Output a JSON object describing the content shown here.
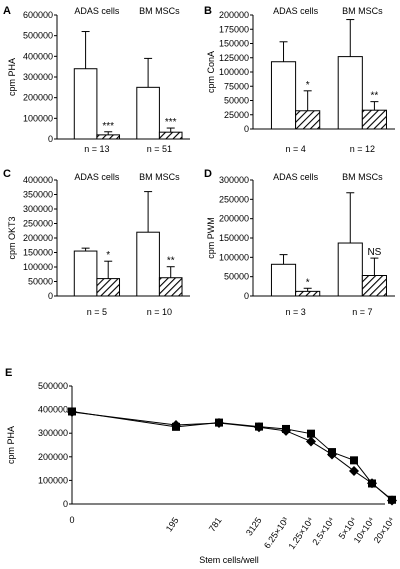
{
  "chart_data": [
    {
      "panel": "A",
      "type": "bar",
      "ylabel": "cpm PHA",
      "ylim": [
        0,
        600000
      ],
      "yticks": [
        "0",
        "100000",
        "200000",
        "300000",
        "400000",
        "500000",
        "600000"
      ],
      "groups": [
        {
          "label": "ADAS cells",
          "n_label": "n = 13",
          "bars": [
            {
              "pattern": "open",
              "value": 340000,
              "err": 180000
            },
            {
              "pattern": "hatched",
              "value": 20000,
              "err": 15000,
              "sig": "***"
            }
          ]
        },
        {
          "label": "BM MSCs",
          "n_label": "n = 51",
          "bars": [
            {
              "pattern": "open",
              "value": 250000,
              "err": 140000
            },
            {
              "pattern": "hatched",
              "value": 33000,
              "err": 20000,
              "sig": "***"
            }
          ]
        }
      ]
    },
    {
      "panel": "B",
      "type": "bar",
      "ylabel": "cpm ConA",
      "ylim": [
        0,
        200000
      ],
      "yticks": [
        "0",
        "25000",
        "50000",
        "75000",
        "100000",
        "125000",
        "150000",
        "175000",
        "200000"
      ],
      "groups": [
        {
          "label": "ADAS cells",
          "n_label": "n = 4",
          "bars": [
            {
              "pattern": "open",
              "value": 118000,
              "err": 35000
            },
            {
              "pattern": "hatched",
              "value": 32000,
              "err": 35000,
              "sig": "*"
            }
          ]
        },
        {
          "label": "BM MSCs",
          "n_label": "n = 12",
          "bars": [
            {
              "pattern": "open",
              "value": 127000,
              "err": 65000
            },
            {
              "pattern": "hatched",
              "value": 33000,
              "err": 15000,
              "sig": "**"
            }
          ]
        }
      ]
    },
    {
      "panel": "C",
      "type": "bar",
      "ylabel": "cpm OKT3",
      "ylim": [
        0,
        400000
      ],
      "yticks": [
        "0",
        "50000",
        "100000",
        "150000",
        "200000",
        "250000",
        "300000",
        "350000",
        "400000"
      ],
      "groups": [
        {
          "label": "ADAS cells",
          "n_label": "n = 5",
          "bars": [
            {
              "pattern": "open",
              "value": 155000,
              "err": 10000
            },
            {
              "pattern": "hatched",
              "value": 60000,
              "err": 60000,
              "sig": "*"
            }
          ]
        },
        {
          "label": "BM MSCs",
          "n_label": "n = 10",
          "bars": [
            {
              "pattern": "open",
              "value": 220000,
              "err": 140000
            },
            {
              "pattern": "hatched",
              "value": 63000,
              "err": 38000,
              "sig": "**"
            }
          ]
        }
      ]
    },
    {
      "panel": "D",
      "type": "bar",
      "ylabel": "cpm PWM",
      "ylim": [
        0,
        300000
      ],
      "yticks": [
        "0",
        "50000",
        "100000",
        "150000",
        "200000",
        "250000",
        "300000"
      ],
      "groups": [
        {
          "label": "ADAS cells",
          "n_label": "n = 3",
          "bars": [
            {
              "pattern": "open",
              "value": 82000,
              "err": 25000
            },
            {
              "pattern": "hatched",
              "value": 12000,
              "err": 8000,
              "sig": "*"
            }
          ]
        },
        {
          "label": "BM MSCs",
          "n_label": "n = 7",
          "bars": [
            {
              "pattern": "open",
              "value": 137000,
              "err": 130000
            },
            {
              "pattern": "hatched",
              "value": 53000,
              "err": 45000,
              "sig": "NS"
            }
          ]
        }
      ]
    },
    {
      "panel": "E",
      "type": "line",
      "ylabel": "cpm PHA",
      "xlabel": "Stem cells/well",
      "ylim": [
        0,
        500000
      ],
      "yticks": [
        "0",
        "100000",
        "200000",
        "300000",
        "400000",
        "500000"
      ],
      "x_labels": [
        "0",
        "195",
        "781",
        "3125",
        "6.25×10³",
        "1.25×10⁴",
        "2.5×10⁴",
        "5×10⁴",
        "10×10⁴",
        "20×10⁴"
      ],
      "series": [
        {
          "marker": "diamond",
          "values": [
            390000,
            335000,
            343000,
            325000,
            310000,
            265000,
            210000,
            140000,
            88000,
            15000
          ]
        },
        {
          "marker": "square",
          "values": [
            392000,
            327000,
            345000,
            328000,
            318000,
            298000,
            220000,
            185000,
            87000,
            18000
          ]
        }
      ]
    }
  ]
}
